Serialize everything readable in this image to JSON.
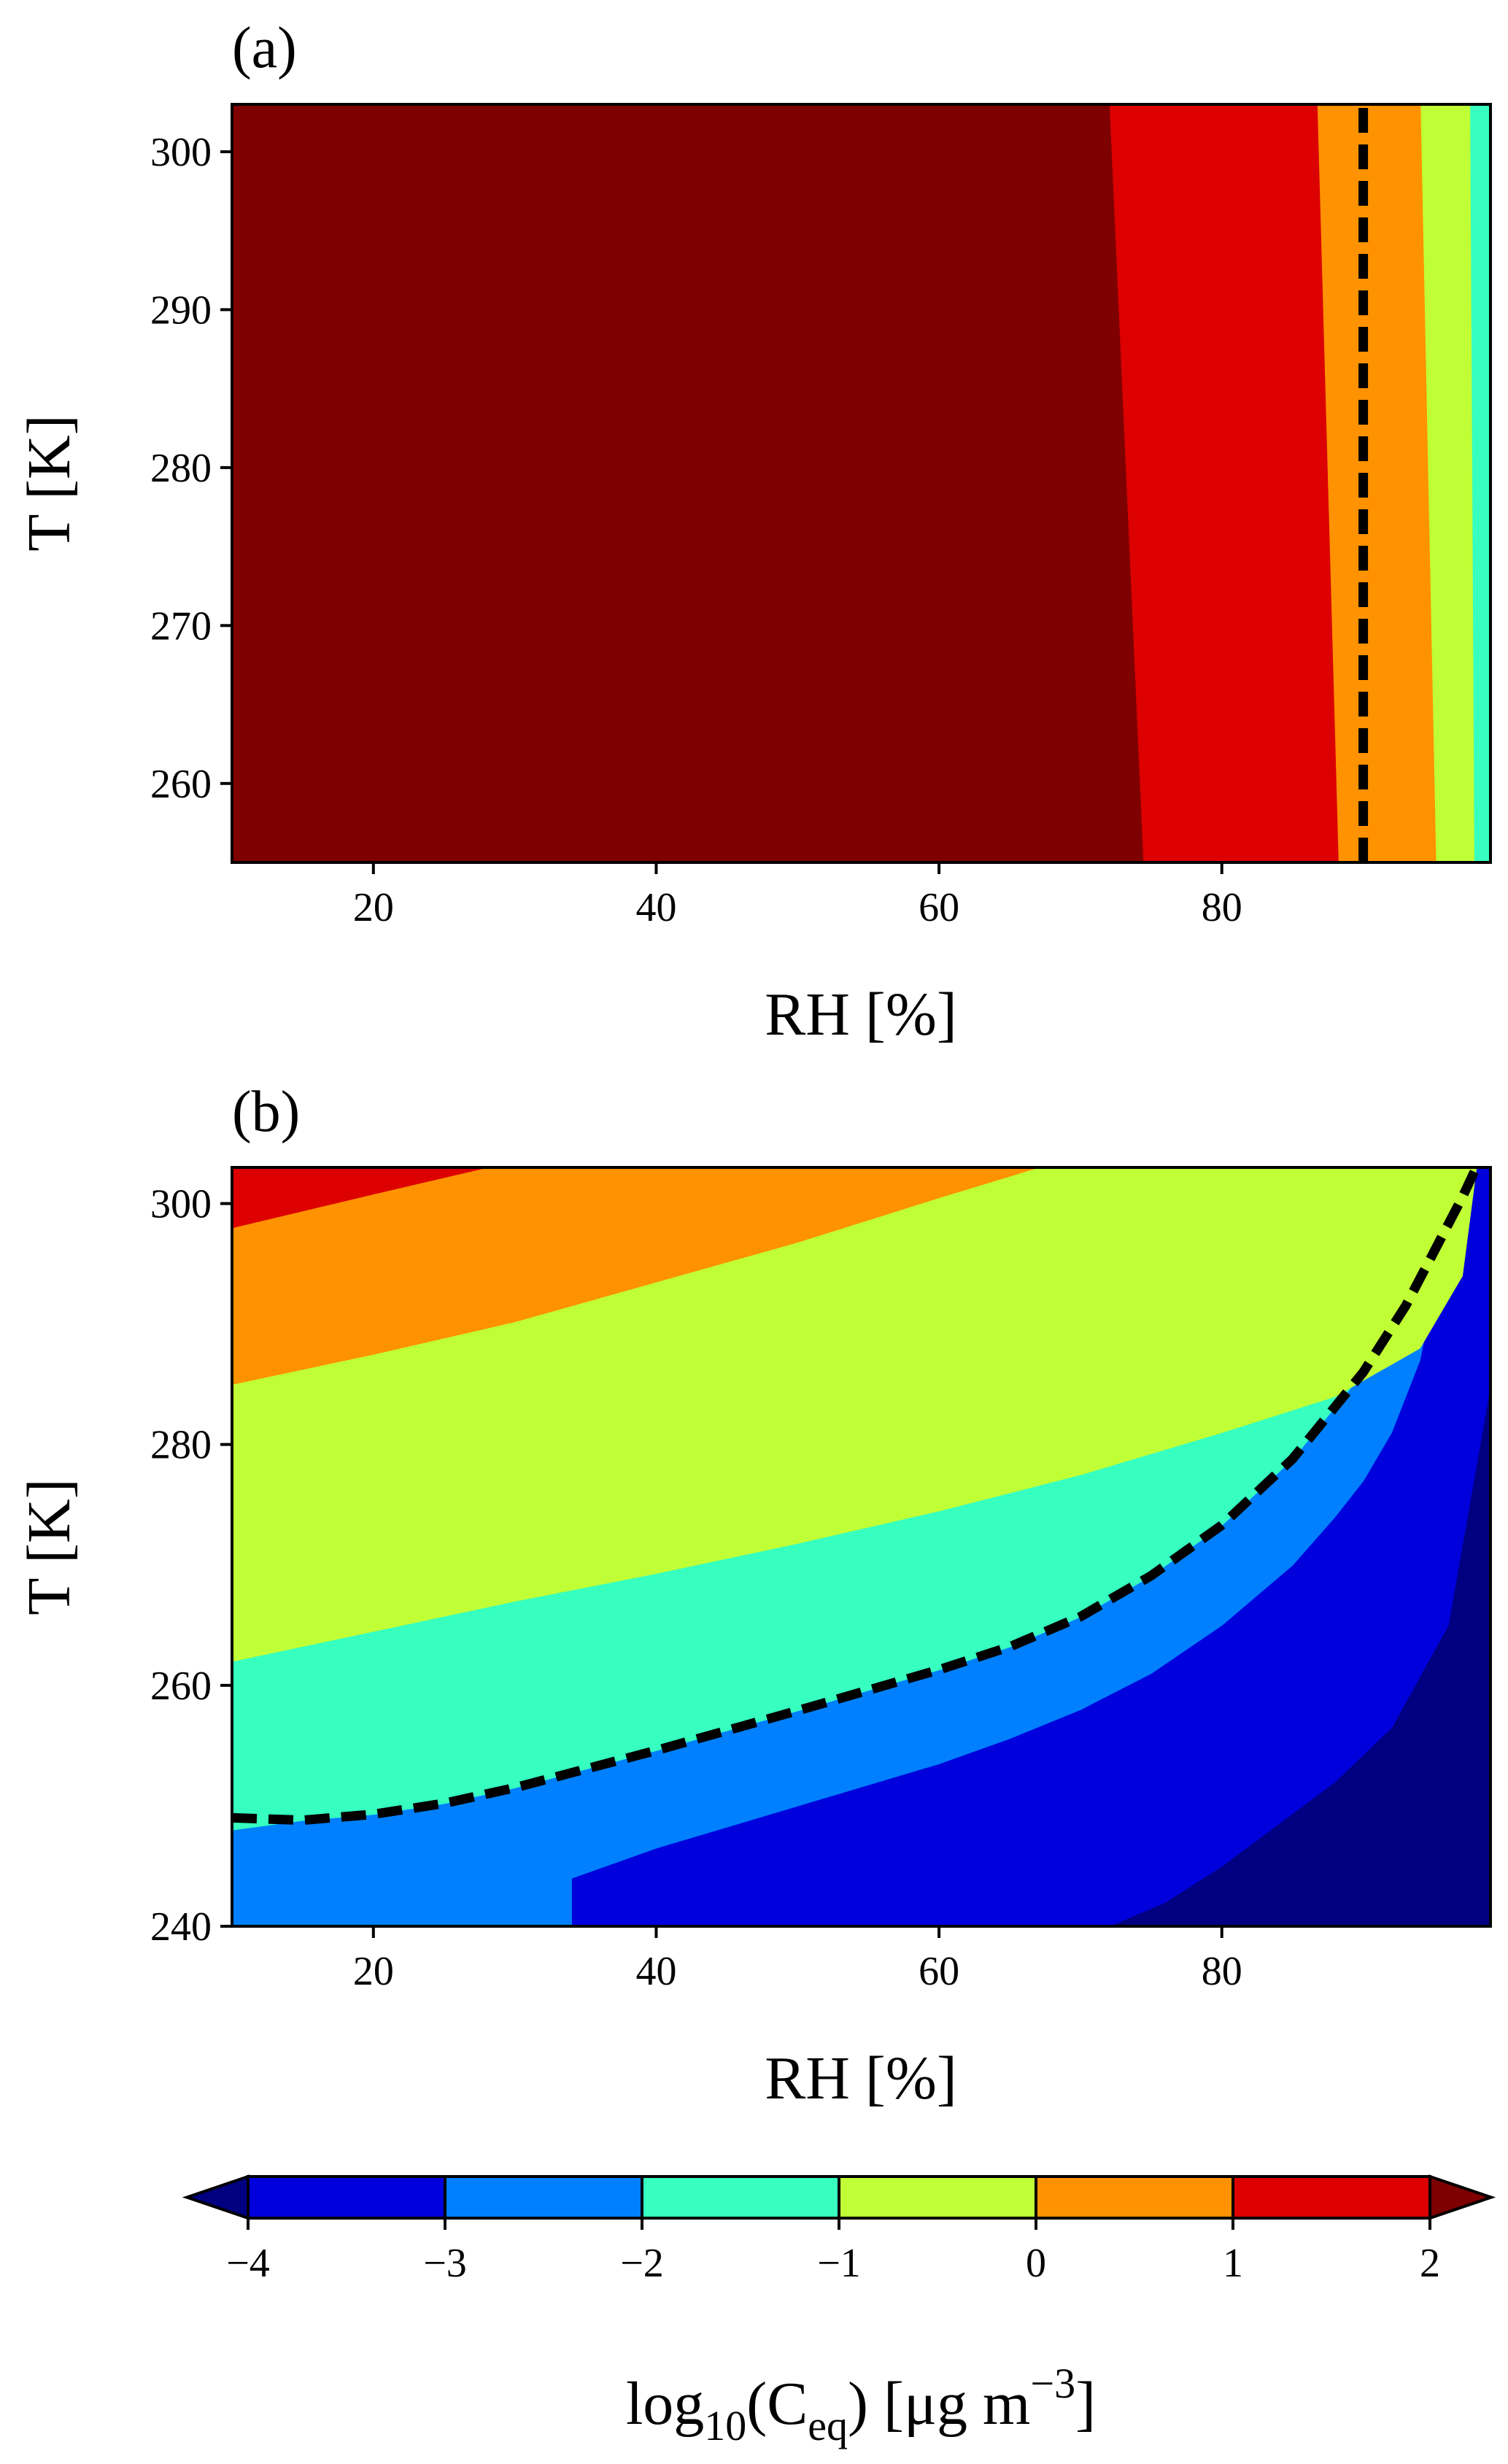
{
  "chart_data": [
    {
      "type": "contour",
      "panel_label": "(a)",
      "xlabel": "RH [%]",
      "ylabel": "T [K]",
      "xlim": [
        10,
        99
      ],
      "ylim": [
        255,
        303
      ],
      "xticks": [
        20,
        40,
        60,
        80
      ],
      "yticks": [
        260,
        270,
        280,
        290,
        300
      ],
      "dashed_contour": {
        "level_note": "vertical dashed line",
        "x": [
          90,
          90
        ],
        "y": [
          255,
          303
        ]
      },
      "regions": [
        {
          "band": ">2",
          "color": "#7f0000",
          "polygon": [
            [
              10,
              255
            ],
            [
              74.5,
              255
            ],
            [
              72.1,
              303
            ],
            [
              10,
              303
            ]
          ]
        },
        {
          "band": "1 to 2",
          "color": "#dd0000",
          "polygon": [
            [
              74.5,
              255
            ],
            [
              88.3,
              255
            ],
            [
              86.8,
              303
            ],
            [
              72.1,
              303
            ]
          ]
        },
        {
          "band": "0 to 1",
          "color": "#ff9200",
          "polygon": [
            [
              88.3,
              255
            ],
            [
              95.2,
              255
            ],
            [
              94.1,
              303
            ],
            [
              86.8,
              303
            ]
          ]
        },
        {
          "band": "-1 to 0",
          "color": "#c0ff36",
          "polygon": [
            [
              95.2,
              255
            ],
            [
              97.9,
              255
            ],
            [
              97.6,
              303
            ],
            [
              94.1,
              303
            ]
          ]
        },
        {
          "band": "-2 to -1",
          "color": "#36ffc0",
          "polygon": [
            [
              97.9,
              255
            ],
            [
              99,
              255
            ],
            [
              99,
              303
            ],
            [
              97.6,
              303
            ]
          ]
        }
      ]
    },
    {
      "type": "contour",
      "panel_label": "(b)",
      "xlabel": "RH [%]",
      "ylabel": "T [K]",
      "xlim": [
        10,
        99
      ],
      "ylim": [
        240,
        303
      ],
      "xticks": [
        20,
        40,
        60,
        80
      ],
      "yticks": [
        240,
        260,
        280,
        300
      ],
      "dashed_contour": {
        "x": [
          10,
          15,
          20,
          25,
          30,
          40,
          50,
          60,
          65,
          70,
          75,
          80,
          85,
          90,
          93,
          95,
          97,
          98
        ],
        "y": [
          249,
          248.8,
          249.3,
          250.2,
          251.5,
          254.6,
          257.9,
          261.3,
          263.2,
          265.7,
          269.1,
          273.3,
          278.8,
          286,
          291.5,
          296,
          300.5,
          303
        ]
      },
      "regions": [
        {
          "band": "-5 to -4",
          "color": "#000080",
          "polygon": [
            [
              72,
              240
            ],
            [
              99,
              240
            ],
            [
              99,
              285
            ],
            [
              96,
              265
            ],
            [
              92,
              256.5
            ],
            [
              88,
              252
            ],
            [
              84,
              248.5
            ],
            [
              80,
              245
            ],
            [
              76,
              242
            ]
          ]
        },
        {
          "band": "-4 to -3",
          "color": "#0000dd",
          "polygon": [
            [
              34,
              240
            ],
            [
              72,
              240
            ],
            [
              76,
              242
            ],
            [
              80,
              245
            ],
            [
              84,
              248.5
            ],
            [
              88,
              252
            ],
            [
              92,
              256.5
            ],
            [
              96,
              265
            ],
            [
              99,
              285
            ],
            [
              99,
              303
            ],
            [
              97.6,
              303
            ],
            [
              96,
              299
            ],
            [
              94,
              287
            ],
            [
              92,
              281
            ],
            [
              90,
              277
            ],
            [
              88,
              274
            ],
            [
              85,
              270
            ],
            [
              80,
              265
            ],
            [
              75,
              261
            ],
            [
              70,
              258
            ],
            [
              65,
              255.6
            ],
            [
              60,
              253.5
            ],
            [
              50,
              250
            ],
            [
              40,
              246.5
            ],
            [
              34,
              244
            ]
          ]
        },
        {
          "band": "-3 to -2",
          "color": "#0080ff",
          "polygon": [
            [
              10,
              240
            ],
            [
              34,
              240
            ],
            [
              34,
              244
            ],
            [
              40,
              246.5
            ],
            [
              50,
              250
            ],
            [
              60,
              253.5
            ],
            [
              65,
              255.6
            ],
            [
              70,
              258
            ],
            [
              75,
              261
            ],
            [
              80,
              265
            ],
            [
              85,
              270
            ],
            [
              88,
              274
            ],
            [
              90,
              277
            ],
            [
              92,
              281
            ],
            [
              94,
              287
            ],
            [
              96,
              299
            ],
            [
              97.6,
              303
            ],
            [
              98,
              303
            ],
            [
              97,
              300.5
            ],
            [
              95,
              296
            ],
            [
              93,
              291.5
            ],
            [
              90,
              286
            ],
            [
              85,
              278.8
            ],
            [
              80,
              273.3
            ],
            [
              75,
              269.1
            ],
            [
              70,
              265.7
            ],
            [
              65,
              263.2
            ],
            [
              60,
              261.3
            ],
            [
              50,
              257.9
            ],
            [
              40,
              254.6
            ],
            [
              30,
              251.5
            ],
            [
              25,
              250.2
            ],
            [
              20,
              249.3
            ],
            [
              15,
              248.8
            ],
            [
              10,
              248
            ]
          ]
        },
        {
          "band": "-2 to -1",
          "color": "#36ffc0",
          "polygon": [
            [
              10,
              248
            ],
            [
              15,
              248.8
            ],
            [
              20,
              249.3
            ],
            [
              25,
              250.2
            ],
            [
              30,
              251.5
            ],
            [
              40,
              254.6
            ],
            [
              50,
              257.9
            ],
            [
              60,
              261.3
            ],
            [
              65,
              263.2
            ],
            [
              70,
              265.7
            ],
            [
              75,
              269.1
            ],
            [
              80,
              273.3
            ],
            [
              85,
              278.8
            ],
            [
              90,
              286
            ],
            [
              93,
              291.5
            ],
            [
              95,
              296
            ],
            [
              97,
              300.5
            ],
            [
              98,
              303
            ],
            [
              86,
              303
            ],
            [
              80,
              298
            ],
            [
              70,
              293
            ],
            [
              60,
              290
            ],
            [
              50,
              287
            ],
            [
              40,
              284.3
            ],
            [
              30,
              282
            ],
            [
              20,
              279.8
            ],
            [
              10,
              278
            ]
          ]
        },
        {
          "band": "-1 to 0",
          "color": "#c0ff36",
          "polygon": [
            [
              10,
              262
            ],
            [
              20,
              264.5
            ],
            [
              30,
              267
            ],
            [
              40,
              269.3
            ],
            [
              50,
              271.8
            ],
            [
              60,
              274.5
            ],
            [
              70,
              277.5
            ],
            [
              80,
              281
            ],
            [
              88,
              284
            ],
            [
              94,
              288
            ],
            [
              97,
              294
            ],
            [
              98,
              303
            ],
            [
              86,
              303
            ],
            [
              80,
              298
            ],
            [
              70,
              293
            ],
            [
              60,
              290
            ],
            [
              50,
              287
            ],
            [
              40,
              284.3
            ],
            [
              30,
              282
            ],
            [
              20,
              279.8
            ],
            [
              10,
              278
            ]
          ]
        },
        {
          "band": "-1 to 0 upper",
          "color": "#c0ff36",
          "polygon": [
            [
              10,
              278
            ],
            [
              20,
              279.8
            ],
            [
              30,
              282
            ],
            [
              40,
              284.3
            ],
            [
              50,
              287
            ],
            [
              60,
              290
            ],
            [
              70,
              293
            ],
            [
              80,
              298
            ],
            [
              86,
              303
            ],
            [
              67,
              303
            ],
            [
              60,
              300.5
            ],
            [
              50,
              296.8
            ],
            [
              40,
              293.5
            ],
            [
              30,
              290.2
            ],
            [
              20,
              287.5
            ],
            [
              10,
              285
            ]
          ]
        },
        {
          "band": "0 to 1",
          "color": "#ff9200",
          "polygon": [
            [
              10,
              285
            ],
            [
              20,
              287.5
            ],
            [
              30,
              290.2
            ],
            [
              40,
              293.5
            ],
            [
              50,
              296.8
            ],
            [
              60,
              300.5
            ],
            [
              67,
              303
            ],
            [
              28,
              303
            ],
            [
              20,
              300.8
            ],
            [
              10,
              298
            ]
          ]
        },
        {
          "band": "1 to 2",
          "color": "#dd0000",
          "polygon": [
            [
              10,
              298
            ],
            [
              20,
              300.8
            ],
            [
              28,
              303
            ],
            [
              10,
              303
            ]
          ]
        }
      ]
    }
  ],
  "colorbar": {
    "label_prefix": "log",
    "label_sub": "10",
    "label_mid": "(C",
    "label_sub2": "eq",
    "label_tail": ") [μg m",
    "label_sup": "−3",
    "label_end": "]",
    "ticks": [
      "−4",
      "−3",
      "−2",
      "−1",
      "0",
      "1",
      "2"
    ],
    "colors": [
      "#0000dd",
      "#0080ff",
      "#36ffc0",
      "#c0ff36",
      "#ff9200",
      "#dd0000"
    ],
    "under_color": "#000080",
    "over_color": "#7f0000"
  },
  "panels": {
    "a": {
      "label": "(a)",
      "xlabel": "RH [%]",
      "ylabel": "T [K]"
    },
    "b": {
      "label": "(b)",
      "xlabel": "RH [%]",
      "ylabel": "T [K]"
    }
  }
}
